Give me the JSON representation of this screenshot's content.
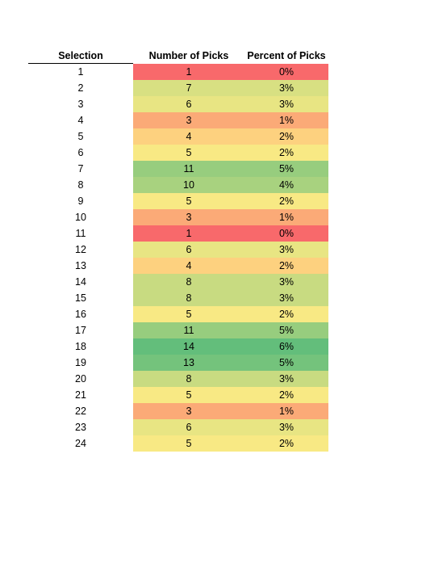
{
  "headers": {
    "selection": "Selection",
    "number_of_picks": "Number of Picks",
    "percent_of_picks": "Percent of Picks"
  },
  "rows": [
    {
      "selection": "1",
      "picks": "1",
      "percent": "0%",
      "color": "#f8696b"
    },
    {
      "selection": "2",
      "picks": "7",
      "percent": "3%",
      "color": "#d8e082"
    },
    {
      "selection": "3",
      "picks": "6",
      "percent": "3%",
      "color": "#e8e583"
    },
    {
      "selection": "4",
      "picks": "3",
      "percent": "1%",
      "color": "#fbaa77"
    },
    {
      "selection": "5",
      "picks": "4",
      "percent": "2%",
      "color": "#fdd17f"
    },
    {
      "selection": "6",
      "picks": "5",
      "percent": "2%",
      "color": "#f8e984"
    },
    {
      "selection": "7",
      "picks": "11",
      "percent": "5%",
      "color": "#97cd7e"
    },
    {
      "selection": "8",
      "picks": "10",
      "percent": "4%",
      "color": "#a8d27f"
    },
    {
      "selection": "9",
      "picks": "5",
      "percent": "2%",
      "color": "#f8e984"
    },
    {
      "selection": "10",
      "picks": "3",
      "percent": "1%",
      "color": "#fbaa77"
    },
    {
      "selection": "11",
      "picks": "1",
      "percent": "0%",
      "color": "#f8696b"
    },
    {
      "selection": "12",
      "picks": "6",
      "percent": "3%",
      "color": "#e8e583"
    },
    {
      "selection": "13",
      "picks": "4",
      "percent": "2%",
      "color": "#fdd17f"
    },
    {
      "selection": "14",
      "picks": "8",
      "percent": "3%",
      "color": "#c8db81"
    },
    {
      "selection": "15",
      "picks": "8",
      "percent": "3%",
      "color": "#c8db81"
    },
    {
      "selection": "16",
      "picks": "5",
      "percent": "2%",
      "color": "#f8e984"
    },
    {
      "selection": "17",
      "picks": "11",
      "percent": "5%",
      "color": "#97cd7e"
    },
    {
      "selection": "18",
      "picks": "14",
      "percent": "6%",
      "color": "#63be7b"
    },
    {
      "selection": "19",
      "picks": "13",
      "percent": "5%",
      "color": "#74c37c"
    },
    {
      "selection": "20",
      "picks": "8",
      "percent": "3%",
      "color": "#c8db81"
    },
    {
      "selection": "21",
      "picks": "5",
      "percent": "2%",
      "color": "#f8e984"
    },
    {
      "selection": "22",
      "picks": "3",
      "percent": "1%",
      "color": "#fbaa77"
    },
    {
      "selection": "23",
      "picks": "6",
      "percent": "3%",
      "color": "#e8e583"
    },
    {
      "selection": "24",
      "picks": "5",
      "percent": "2%",
      "color": "#f8e984"
    }
  ]
}
